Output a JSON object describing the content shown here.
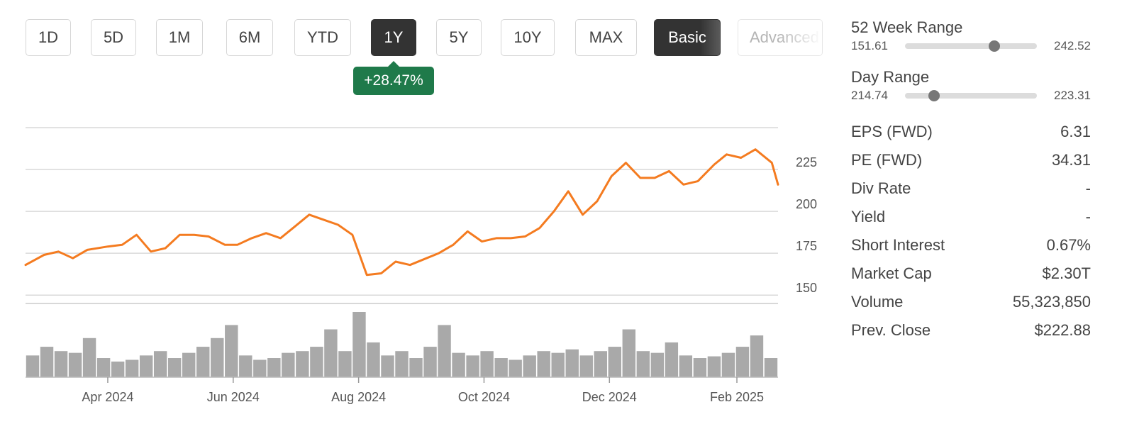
{
  "range_buttons": [
    {
      "label": "1D",
      "active": false
    },
    {
      "label": "5D",
      "active": false
    },
    {
      "label": "1M",
      "active": false
    },
    {
      "label": "6M",
      "active": false
    },
    {
      "label": "YTD",
      "active": false
    },
    {
      "label": "1Y",
      "active": true
    },
    {
      "label": "5Y",
      "active": false
    },
    {
      "label": "10Y",
      "active": false
    },
    {
      "label": "MAX",
      "active": false
    }
  ],
  "mode_buttons": [
    {
      "label": "Basic",
      "active": true
    },
    {
      "label": "Advanced",
      "active": false
    }
  ],
  "change_badge": "+28.47%",
  "colors": {
    "line": "#f47b20",
    "volume": "#a9a9a9",
    "badge": "#1f7a4a",
    "grid": "#d9d9d9",
    "active_button": "#333333"
  },
  "chart_data": {
    "type": "line",
    "title": "",
    "xlabel": "",
    "ylabel": "",
    "x_ticks": [
      "Apr 2024",
      "Jun 2024",
      "Aug 2024",
      "Oct 2024",
      "Dec 2024",
      "Feb 2025"
    ],
    "x_tick_dates": [
      "2024-04-01",
      "2024-06-01",
      "2024-08-01",
      "2024-10-01",
      "2024-12-01",
      "2025-02-01"
    ],
    "x_range": [
      "2024-02-21",
      "2025-02-21"
    ],
    "y_ticks": [
      225,
      200,
      175,
      150
    ],
    "ylim": [
      145,
      250
    ],
    "grid": true,
    "series": [
      {
        "x": [
          "2024-02-21",
          "2024-03-01",
          "2024-03-08",
          "2024-03-15",
          "2024-03-22",
          "2024-04-01",
          "2024-04-08",
          "2024-04-15",
          "2024-04-22",
          "2024-04-29",
          "2024-05-06",
          "2024-05-13",
          "2024-05-20",
          "2024-05-28",
          "2024-06-03",
          "2024-06-10",
          "2024-06-17",
          "2024-06-24",
          "2024-07-01",
          "2024-07-08",
          "2024-07-15",
          "2024-07-22",
          "2024-07-29",
          "2024-08-05",
          "2024-08-12",
          "2024-08-19",
          "2024-08-26",
          "2024-09-03",
          "2024-09-09",
          "2024-09-16",
          "2024-09-23",
          "2024-09-30",
          "2024-10-07",
          "2024-10-14",
          "2024-10-21",
          "2024-10-28",
          "2024-11-04",
          "2024-11-11",
          "2024-11-18",
          "2024-11-25",
          "2024-12-02",
          "2024-12-09",
          "2024-12-16",
          "2024-12-23",
          "2024-12-30",
          "2025-01-06",
          "2025-01-13",
          "2025-01-21",
          "2025-01-27",
          "2025-02-03",
          "2025-02-10",
          "2025-02-18",
          "2025-02-21"
        ],
        "values": [
          168,
          174,
          176,
          172,
          177,
          179,
          180,
          186,
          176,
          178,
          186,
          186,
          185,
          180,
          180,
          184,
          187,
          184,
          191,
          198,
          195,
          192,
          186,
          162,
          163,
          170,
          168,
          172,
          175,
          180,
          188,
          182,
          184,
          184,
          185,
          190,
          200,
          212,
          198,
          206,
          221,
          229,
          220,
          220,
          224,
          216,
          218,
          228,
          234,
          232,
          237,
          229,
          216
        ]
      }
    ],
    "volume": {
      "note": "volume bars without axis scale",
      "values": [
        25,
        35,
        30,
        28,
        45,
        22,
        18,
        20,
        25,
        30,
        22,
        28,
        35,
        45,
        60,
        25,
        20,
        22,
        28,
        30,
        35,
        55,
        30,
        75,
        40,
        25,
        30,
        22,
        35,
        60,
        28,
        25,
        30,
        22,
        20,
        25,
        30,
        28,
        32,
        25,
        30,
        35,
        55,
        30,
        28,
        40,
        25,
        22,
        24,
        28,
        35,
        48,
        22
      ]
    }
  },
  "stats": {
    "week52": {
      "title": "52 Week Range",
      "low": "151.61",
      "high": "242.52",
      "position": 0.68
    },
    "day": {
      "title": "Day Range",
      "low": "214.74",
      "high": "223.31",
      "position": 0.22
    },
    "rows": [
      {
        "label": "EPS (FWD)",
        "value": "6.31"
      },
      {
        "label": "PE (FWD)",
        "value": "34.31"
      },
      {
        "label": "Div Rate",
        "value": "-"
      },
      {
        "label": "Yield",
        "value": "-"
      },
      {
        "label": "Short Interest",
        "value": "0.67%"
      },
      {
        "label": "Market Cap",
        "value": "$2.30T"
      },
      {
        "label": "Volume",
        "value": "55,323,850"
      },
      {
        "label": "Prev. Close",
        "value": "$222.88"
      }
    ]
  }
}
